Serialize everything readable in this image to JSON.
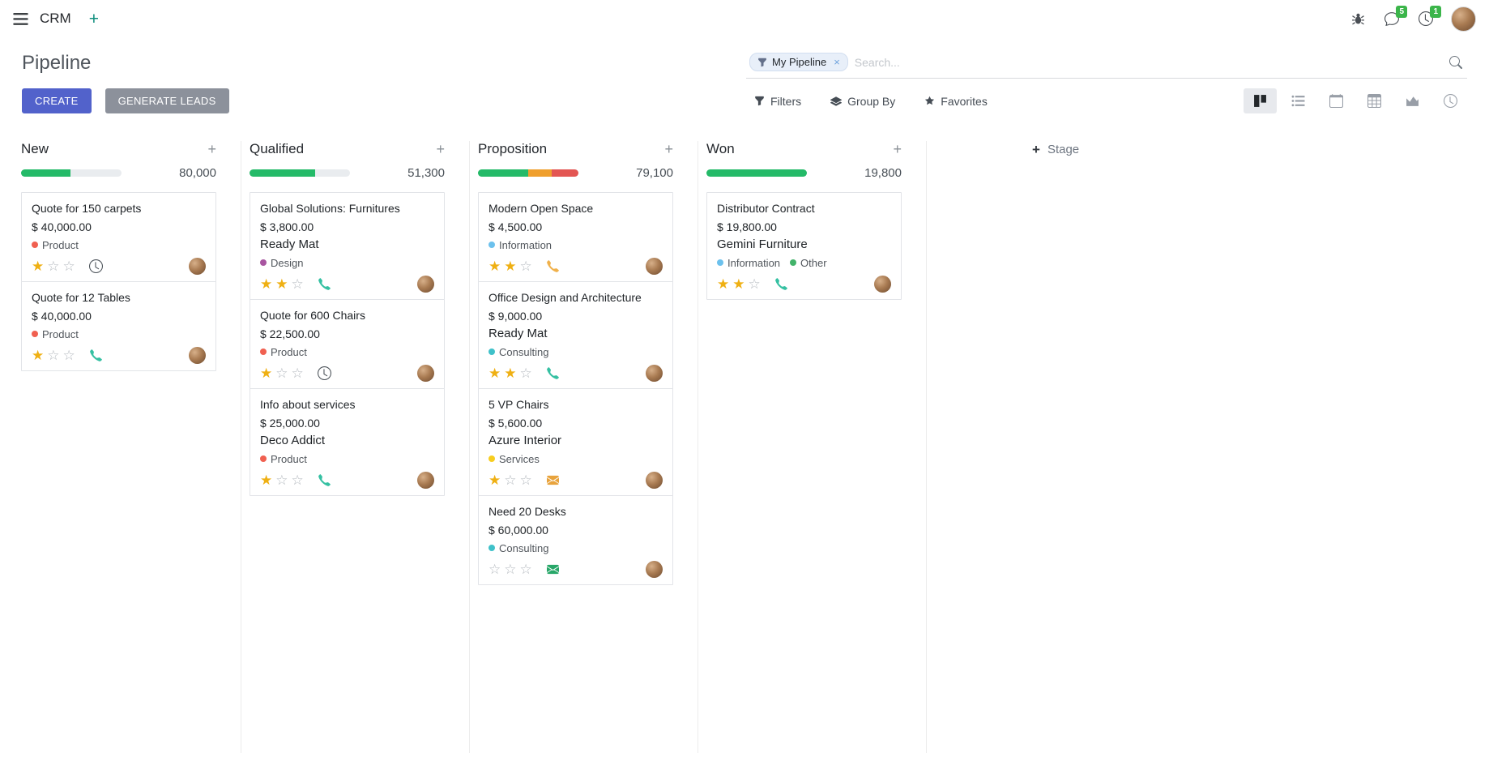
{
  "icons": {
    "plus": "+",
    "close": "×",
    "star_filled": "★",
    "star_empty": "☆"
  },
  "navbar": {
    "app_name": "CRM",
    "messages_badge": "5",
    "activities_badge": "1"
  },
  "control_panel": {
    "title": "Pipeline",
    "facet_label": "My Pipeline",
    "search_placeholder": "Search...",
    "create_label": "CREATE",
    "generate_leads_label": "GENERATE LEADS",
    "filters_label": "Filters",
    "group_by_label": "Group By",
    "favorites_label": "Favorites"
  },
  "view_switcher": {
    "active": "kanban",
    "views": [
      "kanban",
      "list",
      "calendar",
      "pivot",
      "graph",
      "activity"
    ]
  },
  "kanban": {
    "add_stage_label": "Stage",
    "progress_colors": {
      "success": "#24ba68",
      "warning": "#ef9f2d",
      "danger": "#e35653"
    },
    "columns": [
      {
        "name": "New",
        "counter": "80,000",
        "progress": [
          {
            "color": "#24ba68",
            "pct": 49
          }
        ],
        "cards": [
          {
            "title": "Quote for 150 carpets",
            "amount": "$ 40,000.00",
            "tags": [
              {
                "label": "Product",
                "color": "#f06050"
              }
            ],
            "stars": 1,
            "activity": {
              "type": "clock",
              "color": "#495057"
            }
          },
          {
            "title": "Quote for 12 Tables",
            "amount": "$ 40,000.00",
            "tags": [
              {
                "label": "Product",
                "color": "#f06050"
              }
            ],
            "stars": 1,
            "activity": {
              "type": "phone",
              "color": "#35c0a2"
            }
          }
        ]
      },
      {
        "name": "Qualified",
        "counter": "51,300",
        "progress": [
          {
            "color": "#24ba68",
            "pct": 65
          }
        ],
        "cards": [
          {
            "title": "Global Solutions: Furnitures",
            "amount": "$ 3,800.00",
            "partner": "Ready Mat",
            "tags": [
              {
                "label": "Design",
                "color": "#a855a0"
              }
            ],
            "stars": 2,
            "activity": {
              "type": "phone",
              "color": "#35c0a2"
            }
          },
          {
            "title": "Quote for 600 Chairs",
            "amount": "$ 22,500.00",
            "tags": [
              {
                "label": "Product",
                "color": "#f06050"
              }
            ],
            "stars": 1,
            "activity": {
              "type": "clock",
              "color": "#495057"
            }
          },
          {
            "title": "Info about services",
            "amount": "$ 25,000.00",
            "partner": "Deco Addict",
            "tags": [
              {
                "label": "Product",
                "color": "#f06050"
              }
            ],
            "stars": 1,
            "activity": {
              "type": "phone",
              "color": "#35c0a2"
            }
          }
        ]
      },
      {
        "name": "Proposition",
        "counter": "79,100",
        "progress": [
          {
            "color": "#24ba68",
            "pct": 50
          },
          {
            "color": "#ef9f2d",
            "pct": 23
          },
          {
            "color": "#e35653",
            "pct": 27
          }
        ],
        "cards": [
          {
            "title": "Modern Open Space",
            "amount": "$ 4,500.00",
            "tags": [
              {
                "label": "Information",
                "color": "#6cc1ed"
              }
            ],
            "stars": 2,
            "activity": {
              "type": "phone",
              "color": "#f0b14b"
            }
          },
          {
            "title": "Office Design and Architecture",
            "amount": "$ 9,000.00",
            "partner": "Ready Mat",
            "tags": [
              {
                "label": "Consulting",
                "color": "#3fc1c9"
              }
            ],
            "stars": 2,
            "activity": {
              "type": "phone",
              "color": "#35c0a2"
            }
          },
          {
            "title": "5 VP Chairs",
            "amount": "$ 5,600.00",
            "partner": "Azure Interior",
            "tags": [
              {
                "label": "Services",
                "color": "#f7cd1f"
              }
            ],
            "stars": 1,
            "activity": {
              "type": "envelope",
              "color": "#e8a33c"
            }
          },
          {
            "title": "Need 20 Desks",
            "amount": "$ 60,000.00",
            "tags": [
              {
                "label": "Consulting",
                "color": "#3fc1c9"
              }
            ],
            "stars": 0,
            "activity": {
              "type": "envelope",
              "color": "#28a769"
            }
          }
        ]
      },
      {
        "name": "Won",
        "counter": "19,800",
        "progress": [
          {
            "color": "#24ba68",
            "pct": 100
          }
        ],
        "cards": [
          {
            "title": "Distributor Contract",
            "amount": "$ 19,800.00",
            "partner": "Gemini Furniture",
            "tags": [
              {
                "label": "Information",
                "color": "#6cc1ed"
              },
              {
                "label": "Other",
                "color": "#42b36a"
              }
            ],
            "stars": 2,
            "activity": {
              "type": "phone",
              "color": "#35c0a2"
            }
          }
        ]
      }
    ]
  }
}
